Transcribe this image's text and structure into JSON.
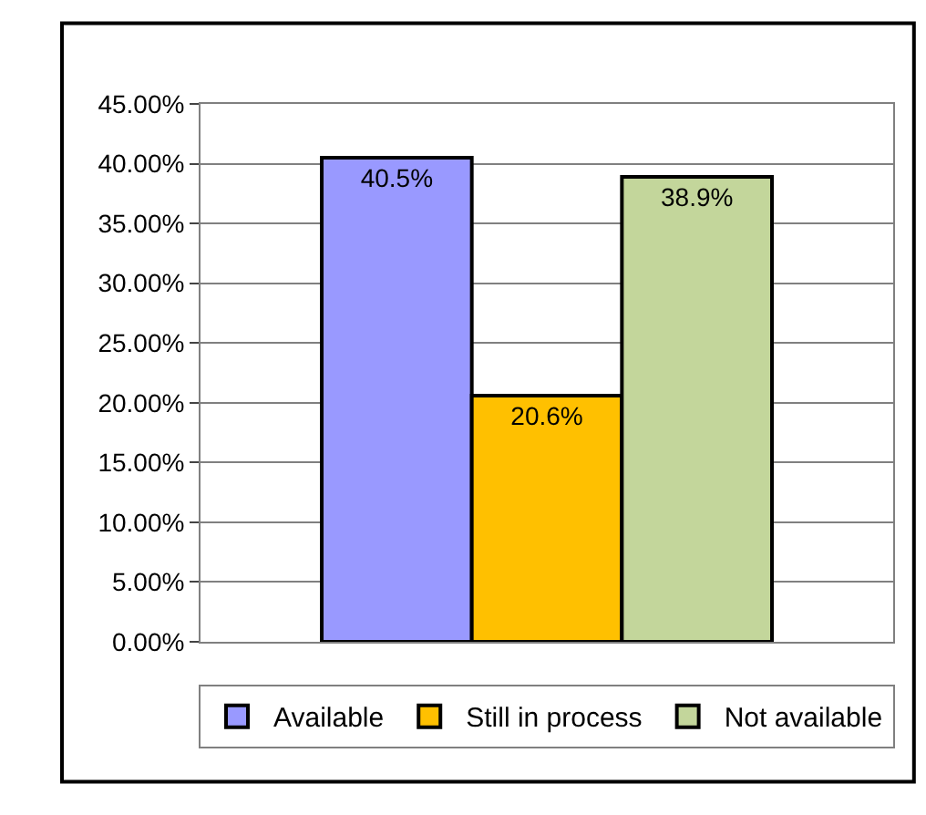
{
  "chart_data": {
    "type": "bar",
    "categories": [
      null
    ],
    "series": [
      {
        "name": "Available",
        "color": "#9999ff",
        "values": [
          40.5
        ],
        "value_labels": [
          "40.5%"
        ]
      },
      {
        "name": "Still in process",
        "color": "#ffc000",
        "values": [
          20.6
        ],
        "value_labels": [
          "20.6%"
        ]
      },
      {
        "name": "Not available",
        "color": "#c3d69b",
        "values": [
          38.9
        ],
        "value_labels": [
          "38.9%"
        ]
      }
    ],
    "ylim": [
      0,
      45
    ],
    "yticks": [
      {
        "value": 0,
        "label": "0.00%"
      },
      {
        "value": 5,
        "label": "5.00%"
      },
      {
        "value": 10,
        "label": "10.00%"
      },
      {
        "value": 15,
        "label": "15.00%"
      },
      {
        "value": 20,
        "label": "20.00%"
      },
      {
        "value": 25,
        "label": "25.00%"
      },
      {
        "value": 30,
        "label": "30.00%"
      },
      {
        "value": 35,
        "label": "35.00%"
      },
      {
        "value": 40,
        "label": "40.00%"
      },
      {
        "value": 45,
        "label": "45.00%"
      }
    ],
    "grid": "y",
    "legend": "bottom"
  }
}
